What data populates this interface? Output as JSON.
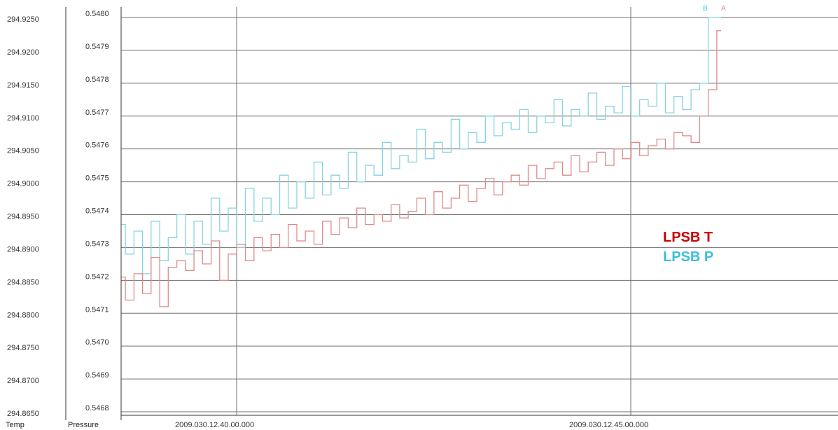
{
  "chart_data": {
    "type": "line",
    "title": "",
    "x_axis": {
      "tick_labels": [
        "2009.030.12.40.00.000",
        "2009.030.12.45.00.000"
      ]
    },
    "y_axis_left": {
      "label": "Temp",
      "range": [
        294.865,
        294.925
      ],
      "tick_labels": [
        "294.9250",
        "294.9200",
        "294.9150",
        "294.9100",
        "294.9050",
        "294.9000",
        "294.8950",
        "294.8900",
        "294.8850",
        "294.8800",
        "294.8750",
        "294.8700",
        "294.8650"
      ]
    },
    "y_axis_right": {
      "label": "Pressure",
      "range": [
        0.5468,
        0.548
      ],
      "tick_labels": [
        "0.5480",
        "0.5479",
        "0.5478",
        "0.5477",
        "0.5476",
        "0.5475",
        "0.5474",
        "0.5473",
        "0.5472",
        "0.5471",
        "0.5470",
        "0.5469",
        "0.5468"
      ]
    },
    "grid": true,
    "legend_position": "right-middle",
    "series": [
      {
        "name": "LPSB T",
        "axis": "Temp",
        "end_label": "A",
        "color": "#cc0000",
        "line_color": "#e08a8a",
        "values": [
          294.8855,
          294.882,
          294.886,
          294.883,
          294.8885,
          294.881,
          294.887,
          294.888,
          294.8865,
          294.8895,
          294.8875,
          294.891,
          294.885,
          294.889,
          294.8905,
          294.888,
          294.8915,
          294.8895,
          294.892,
          294.89,
          294.8935,
          294.891,
          294.8925,
          294.8905,
          294.894,
          294.892,
          294.8945,
          294.893,
          294.896,
          294.8935,
          294.895,
          294.894,
          294.8965,
          294.8945,
          294.8955,
          294.8975,
          294.895,
          294.8985,
          294.896,
          294.8975,
          294.8995,
          294.897,
          294.899,
          294.9005,
          294.898,
          294.9,
          294.901,
          294.8995,
          294.9025,
          294.9005,
          294.902,
          294.903,
          294.901,
          294.904,
          294.9015,
          294.903,
          294.9045,
          294.9025,
          294.905,
          294.9035,
          294.906,
          294.904,
          294.9055,
          294.9065,
          294.905,
          294.9075,
          294.907,
          294.906,
          294.91,
          294.914,
          294.923
        ]
      },
      {
        "name": "LPSB P",
        "axis": "Pressure",
        "end_label": "B",
        "color": "#3cc0dc",
        "line_color": "#86d3e2",
        "values": [
          0.54737,
          0.54728,
          0.54735,
          0.54722,
          0.54738,
          0.54726,
          0.54733,
          0.5474,
          0.54728,
          0.54738,
          0.54731,
          0.54745,
          0.54735,
          0.54742,
          0.5473,
          0.54748,
          0.54738,
          0.54745,
          0.5474,
          0.54752,
          0.54742,
          0.5475,
          0.54745,
          0.54756,
          0.54746,
          0.54752,
          0.54748,
          0.54759,
          0.5475,
          0.54755,
          0.54752,
          0.54762,
          0.54754,
          0.54758,
          0.54756,
          0.54766,
          0.54757,
          0.54762,
          0.54759,
          0.54769,
          0.5476,
          0.54765,
          0.54762,
          0.5477,
          0.54764,
          0.54768,
          0.54766,
          0.54772,
          0.54765,
          0.5477,
          0.54768,
          0.54775,
          0.54767,
          0.54772,
          0.5477,
          0.54777,
          0.54769,
          0.54773,
          0.54771,
          0.54779,
          0.5477,
          0.54775,
          0.54773,
          0.5478,
          0.54771,
          0.54776,
          0.54772,
          0.54778,
          0.5478,
          0.548,
          0.548
        ]
      }
    ],
    "legend": [
      "LPSB T",
      "LPSB P"
    ]
  }
}
